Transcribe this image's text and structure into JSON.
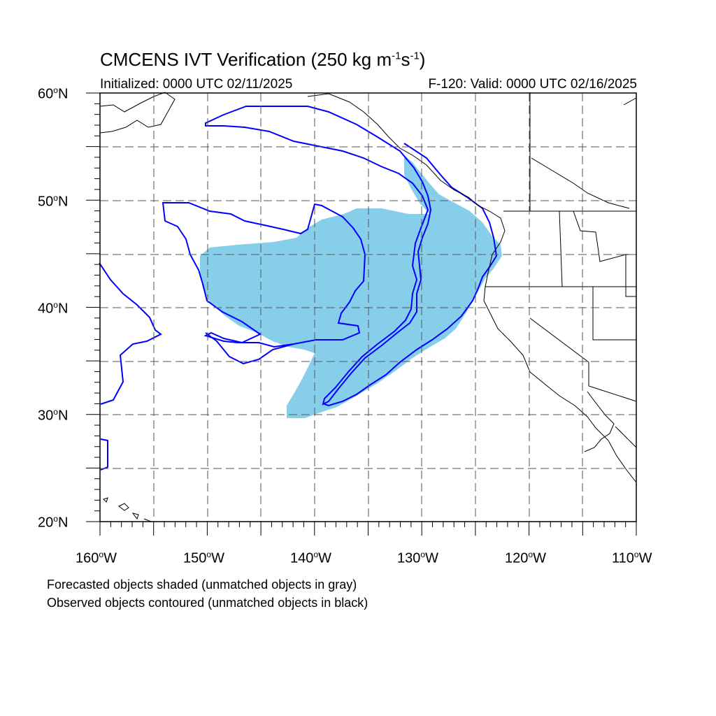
{
  "header": {
    "title_main": "CMCENS IVT Verification (250 kg m",
    "title_sup1": "-1",
    "title_mid": "s",
    "title_sup2": "-1",
    "title_end": ")",
    "initialized": "Initialized: 0000 UTC 02/11/2025",
    "valid": "F-120: Valid: 0000 UTC 02/16/2025"
  },
  "axes": {
    "lat_labels": [
      {
        "num": "60",
        "hemi": "N"
      },
      {
        "num": "50",
        "hemi": "N"
      },
      {
        "num": "40",
        "hemi": "N"
      },
      {
        "num": "30",
        "hemi": "N"
      },
      {
        "num": "20",
        "hemi": "N"
      }
    ],
    "lon_labels": [
      {
        "num": "160",
        "hemi": "W"
      },
      {
        "num": "150",
        "hemi": "W"
      },
      {
        "num": "140",
        "hemi": "W"
      },
      {
        "num": "130",
        "hemi": "W"
      },
      {
        "num": "120",
        "hemi": "W"
      },
      {
        "num": "110",
        "hemi": "W"
      }
    ],
    "lat_range": [
      20,
      60
    ],
    "lon_range": [
      -160,
      -110
    ],
    "grid": "dashed every 5 degrees"
  },
  "footer": {
    "note1": "Forecasted objects shaded (unmatched objects in gray)",
    "note2": "Observed objects contoured (unmatched objects in black)"
  },
  "colors": {
    "forecast_fill": "#87ceeb",
    "observed_contour": "#0000ff",
    "coast": "#000000",
    "grid": "#555555"
  }
}
